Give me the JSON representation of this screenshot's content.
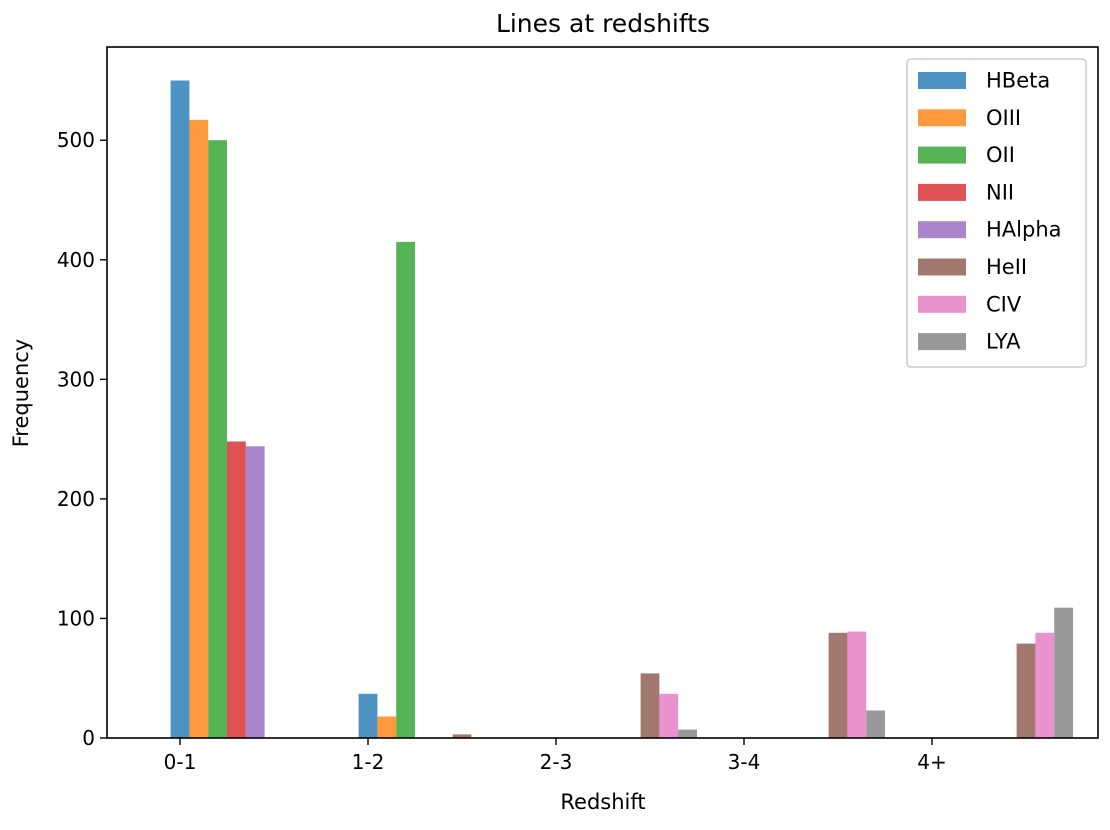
{
  "chart_data": {
    "type": "bar",
    "title": "Lines at redshifts",
    "xlabel": "Redshift",
    "ylabel": "Frequency",
    "categories": [
      "0-1",
      "1-2",
      "2-3",
      "3-4",
      "4+"
    ],
    "ylim": [
      0,
      578
    ],
    "yticks": [
      0,
      100,
      200,
      300,
      400,
      500
    ],
    "grid": false,
    "legend_position": "top-right",
    "series": [
      {
        "name": "HBeta",
        "color": "#1f77b4",
        "values": [
          550,
          37,
          0,
          0,
          0
        ]
      },
      {
        "name": "OIII",
        "color": "#ff7f0e",
        "values": [
          517,
          18,
          0,
          0,
          0
        ]
      },
      {
        "name": "OII",
        "color": "#2ca02c",
        "values": [
          500,
          415,
          0,
          0,
          0
        ]
      },
      {
        "name": "NII",
        "color": "#d62728",
        "values": [
          248,
          0,
          0,
          0,
          0
        ]
      },
      {
        "name": "HAlpha",
        "color": "#9467bd",
        "values": [
          244,
          0,
          0,
          0,
          0
        ]
      },
      {
        "name": "HeII",
        "color": "#8c564b",
        "values": [
          0,
          3,
          54,
          88,
          79
        ]
      },
      {
        "name": "CIV",
        "color": "#e377c2",
        "values": [
          0,
          0,
          37,
          89,
          88
        ]
      },
      {
        "name": "LYA",
        "color": "#7f7f7f",
        "values": [
          0,
          0,
          7,
          23,
          109
        ]
      }
    ]
  }
}
